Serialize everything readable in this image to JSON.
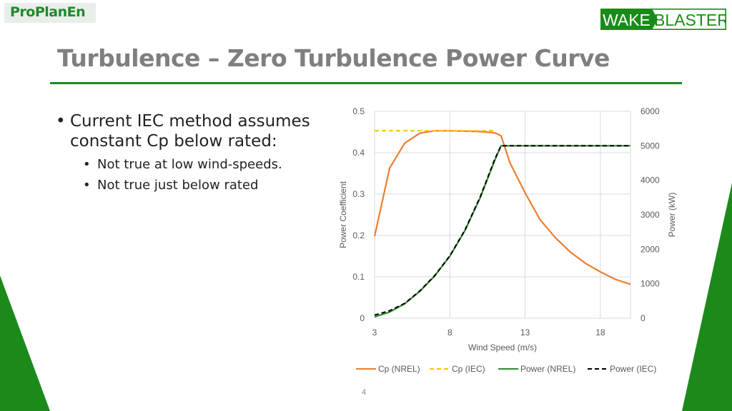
{
  "logo_left": "ProPlanEn",
  "logo_right": {
    "part1": "WAKE",
    "part2": "BLASTER"
  },
  "title": "Turbulence – Zero Turbulence Power Curve",
  "bullets": [
    {
      "text": "Current IEC method assumes constant Cp below rated:",
      "children": [
        "Not true at low wind-speeds.",
        "Not true just below rated"
      ]
    }
  ],
  "page_number": "4",
  "colors": {
    "green": "#1b8a1b",
    "cp_nrel": "#ed7d31",
    "cp_iec": "#ffc000",
    "power_nrel": "#2e8b2e",
    "power_iec": "#000000"
  },
  "chart_data": {
    "type": "line",
    "xlabel": "Wind Speed (m/s)",
    "ylabel": "Power Coefficient",
    "y2label": "Power (kW)",
    "xlim": [
      3,
      20
    ],
    "ylim": [
      0,
      0.5
    ],
    "y2lim": [
      0,
      6000
    ],
    "x_ticks": [
      3,
      8,
      13,
      18
    ],
    "y_ticks": [
      "0",
      "0.1",
      "0.2",
      "0.3",
      "0.4",
      "0.5"
    ],
    "y2_ticks": [
      "0",
      "1000",
      "2000",
      "3000",
      "4000",
      "5000",
      "6000"
    ],
    "grid": true,
    "legend_position": "bottom",
    "series": [
      {
        "name": "Cp (NREL)",
        "axis": "left",
        "style": "solid",
        "color": "#ed7d31",
        "x": [
          3,
          4,
          5,
          6,
          7,
          8,
          9,
          10,
          11,
          11.4,
          12,
          13,
          14,
          15,
          16,
          17,
          18,
          19,
          20
        ],
        "y": [
          0.198,
          0.363,
          0.423,
          0.447,
          0.453,
          0.453,
          0.452,
          0.451,
          0.448,
          0.441,
          0.375,
          0.303,
          0.238,
          0.195,
          0.16,
          0.133,
          0.112,
          0.094,
          0.082
        ]
      },
      {
        "name": "Cp (IEC)",
        "axis": "left",
        "style": "dashed",
        "color": "#ffc000",
        "x": [
          3,
          11
        ],
        "y": [
          0.453,
          0.453
        ]
      },
      {
        "name": "Power (NREL)",
        "axis": "right",
        "style": "solid",
        "color": "#2e8b2e",
        "x": [
          3,
          4,
          5,
          6,
          7,
          8,
          9,
          10,
          11,
          11.4,
          12,
          13,
          14,
          15,
          16,
          17,
          18,
          19,
          20
        ],
        "y": [
          40,
          180,
          420,
          780,
          1230,
          1800,
          2540,
          3480,
          4600,
          5000,
          5000,
          5000,
          5000,
          5000,
          5000,
          5000,
          5000,
          5000,
          5000
        ]
      },
      {
        "name": "Power (IEC)",
        "axis": "right",
        "style": "dashed",
        "color": "#000000",
        "x": [
          3,
          4,
          5,
          6,
          7,
          8,
          9,
          10,
          11,
          11.4,
          12,
          13,
          14,
          15,
          16,
          17,
          18,
          19,
          20
        ],
        "y": [
          90,
          220,
          430,
          790,
          1240,
          1810,
          2560,
          3500,
          4630,
          5000,
          5000,
          5000,
          5000,
          5000,
          5000,
          5000,
          5000,
          5000,
          5000
        ]
      }
    ]
  }
}
